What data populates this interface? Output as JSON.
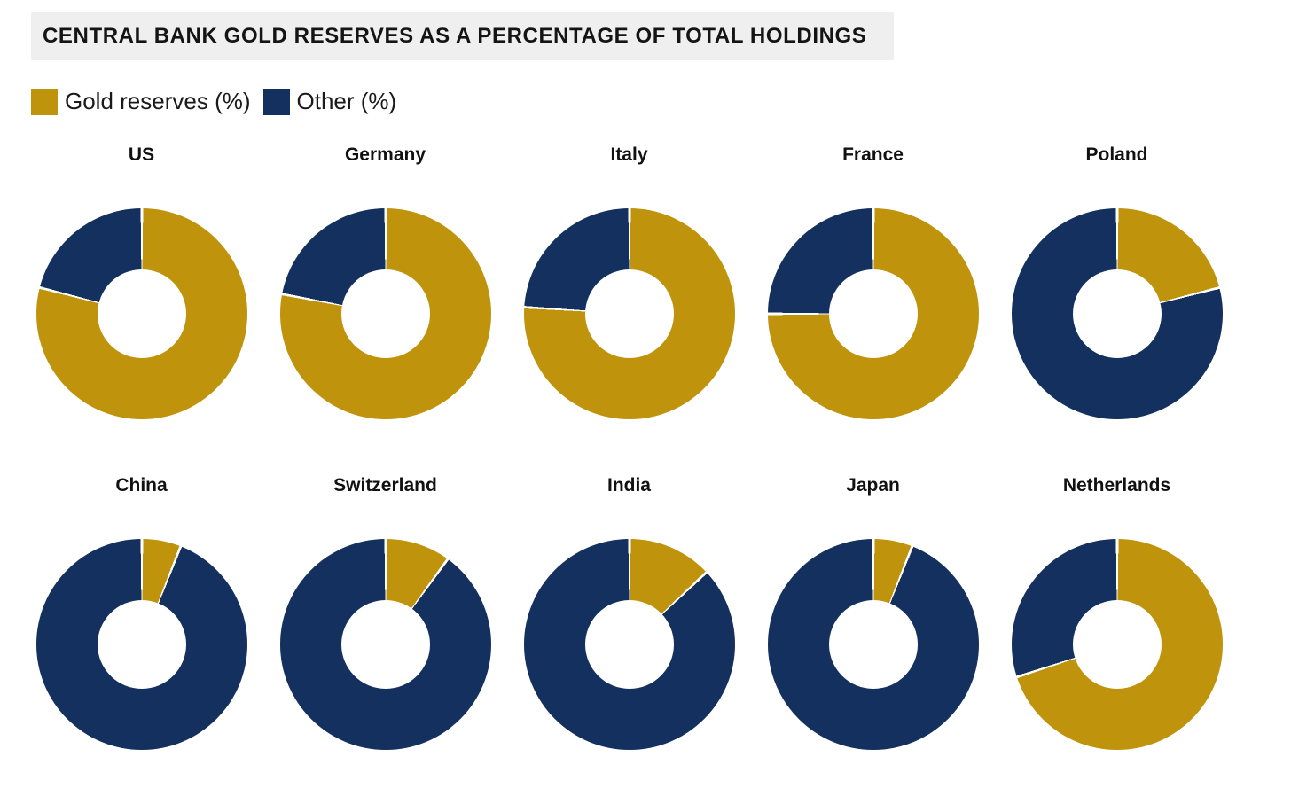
{
  "header": {
    "title": "CENTRAL BANK GOLD RESERVES AS A PERCENTAGE OF TOTAL HOLDINGS",
    "background": "#EFEFEF"
  },
  "legend": [
    {
      "label": "Gold reserves (%)",
      "color": "#C0930C"
    },
    {
      "label": "Other (%)",
      "color": "#14305E"
    }
  ],
  "chart_data": {
    "type": "pie",
    "variant": "donut",
    "title": "CENTRAL BANK GOLD RESERVES AS A PERCENTAGE OF TOTAL HOLDINGS",
    "layout": "grid of 10 donuts, 2 rows x 5 columns, slices start at 12 o'clock clockwise, thin white separators",
    "legend_position": "top-left",
    "series_labels": [
      "Gold reserves (%)",
      "Other (%)"
    ],
    "colors": {
      "gold": "#C0930C",
      "other": "#14305E",
      "separator": "#FFFFFF"
    },
    "unit": "%",
    "countries": [
      {
        "name": "US",
        "gold": 79,
        "other": 21
      },
      {
        "name": "Germany",
        "gold": 78,
        "other": 22
      },
      {
        "name": "Italy",
        "gold": 76,
        "other": 24
      },
      {
        "name": "France",
        "gold": 75,
        "other": 25
      },
      {
        "name": "Poland",
        "gold": 21,
        "other": 79
      },
      {
        "name": "China",
        "gold": 6,
        "other": 94
      },
      {
        "name": "Switzerland",
        "gold": 10,
        "other": 90
      },
      {
        "name": "India",
        "gold": 13,
        "other": 87
      },
      {
        "name": "Japan",
        "gold": 6,
        "other": 94
      },
      {
        "name": "Netherlands",
        "gold": 70,
        "other": 30
      }
    ]
  }
}
